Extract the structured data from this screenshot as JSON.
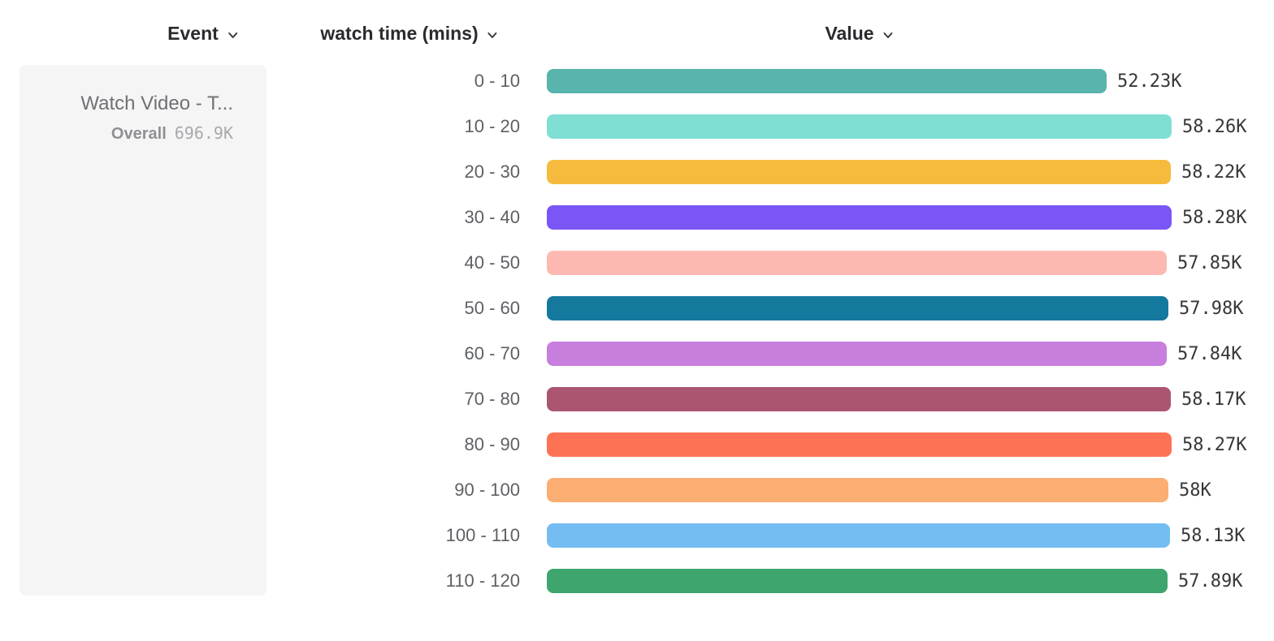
{
  "columns": {
    "event": "Event",
    "breakdown": "watch time (mins)",
    "value": "Value"
  },
  "event_card": {
    "title": "Watch Video - T...",
    "overall_label": "Overall",
    "overall_value": "696.9K"
  },
  "icons": {
    "header_dropdown": "chevron-down"
  },
  "chart_data": {
    "type": "bar",
    "orientation": "horizontal",
    "title": "",
    "xlabel": "Value",
    "ylabel": "watch time (mins)",
    "grid": false,
    "legend": "none",
    "xlim": [
      0,
      58280
    ],
    "categories": [
      "0 - 10",
      "10 - 20",
      "20 - 30",
      "30 - 40",
      "40 - 50",
      "50 - 60",
      "60 - 70",
      "70 - 80",
      "80 - 90",
      "90 - 100",
      "100 - 110",
      "110 - 120"
    ],
    "values": [
      52230,
      58260,
      58220,
      58280,
      57850,
      57980,
      57840,
      58170,
      58270,
      58000,
      58130,
      57890
    ],
    "value_labels": [
      "52.23K",
      "58.26K",
      "58.22K",
      "58.28K",
      "57.85K",
      "57.98K",
      "57.84K",
      "58.17K",
      "58.27K",
      "58K",
      "58.13K",
      "57.89K"
    ],
    "bar_colors": [
      "#58b4ac",
      "#7fdfd3",
      "#f6bb3d",
      "#7a56f6",
      "#fdb9b1",
      "#15799e",
      "#c77edd",
      "#ab5571",
      "#fd7255",
      "#fcae72",
      "#74bdf2",
      "#3ea56f"
    ]
  }
}
